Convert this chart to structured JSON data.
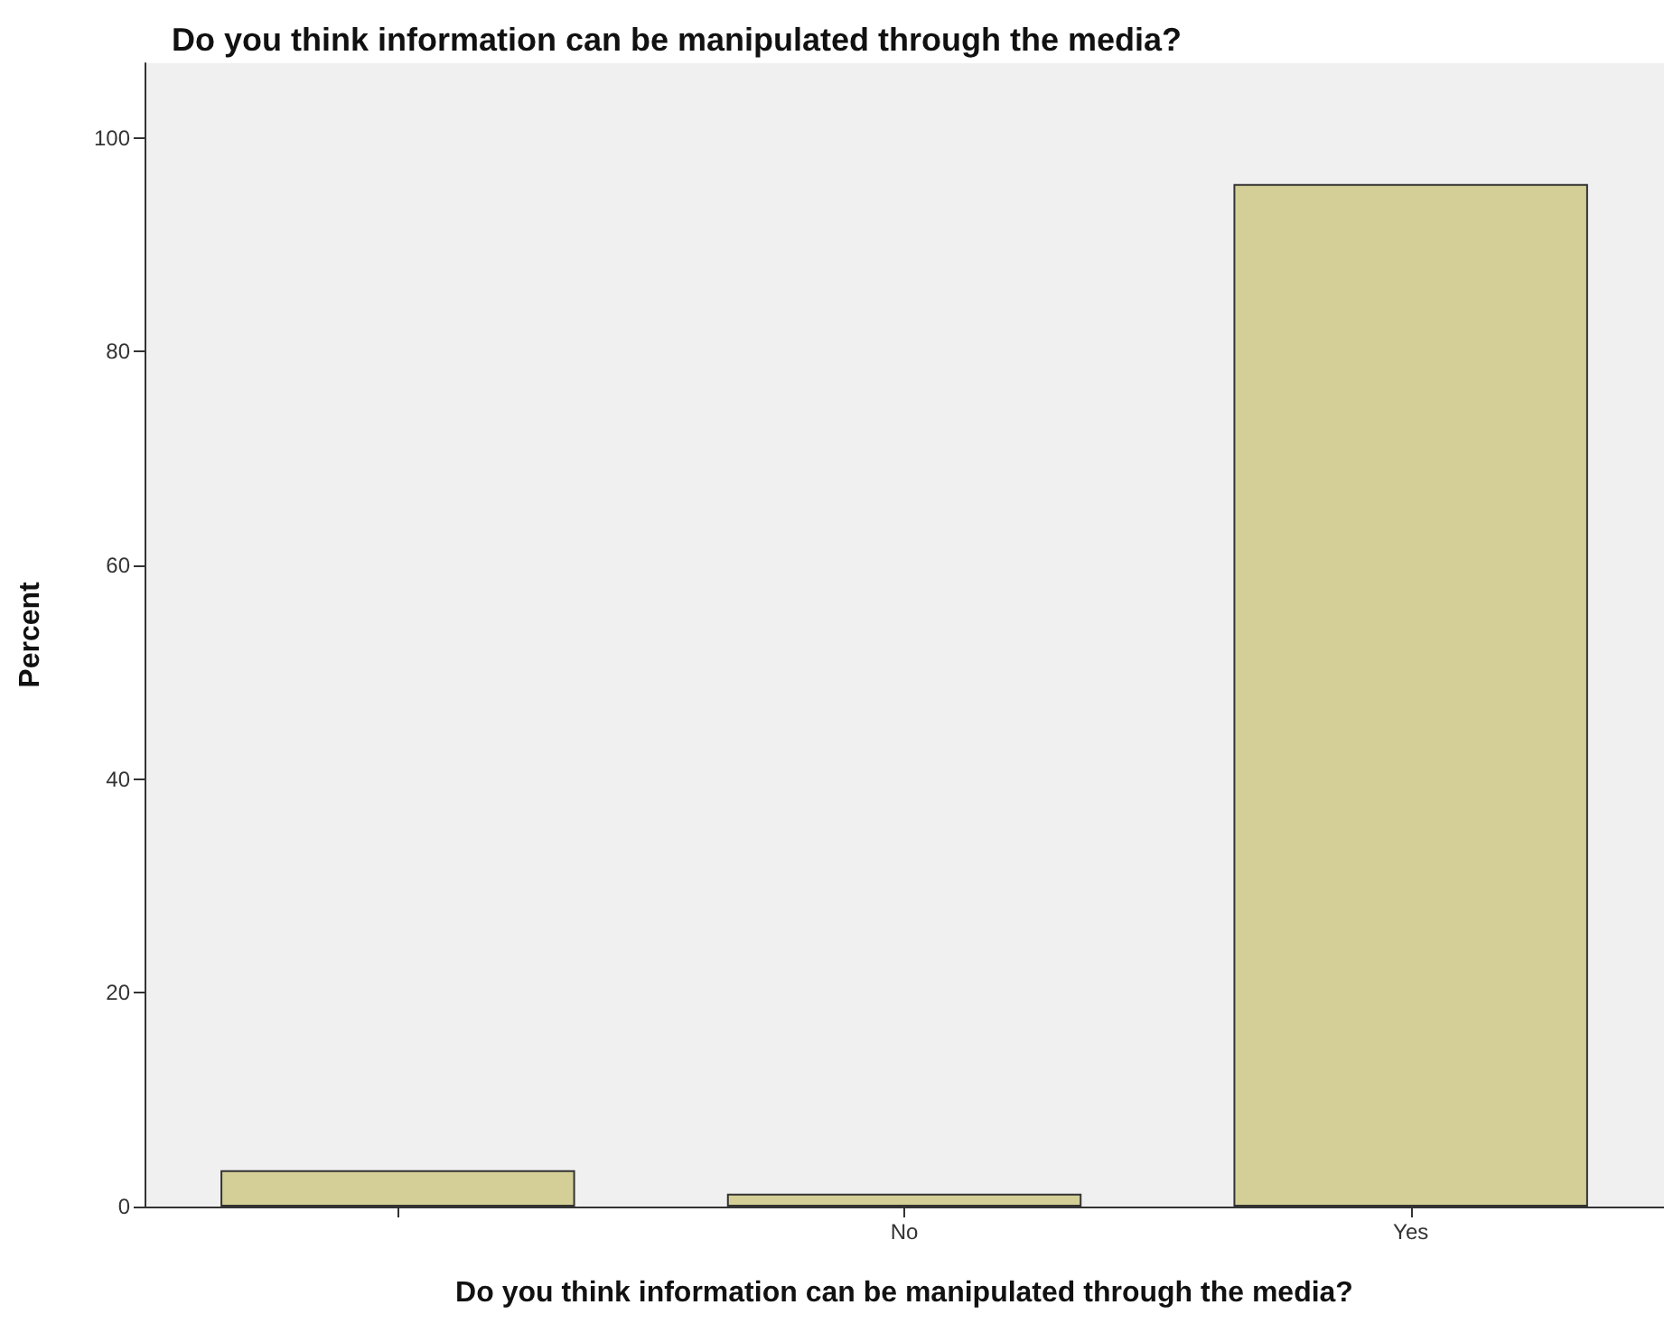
{
  "chart_data": {
    "type": "bar",
    "title": "Do you think information can be manipulated through the media?",
    "xlabel": "Do you think information can be manipulated through the media?",
    "ylabel": "Percent",
    "categories": [
      null,
      "No",
      "Yes"
    ],
    "values": [
      3.4,
      1.2,
      95.7
    ],
    "color": "#d4cf96",
    "ylim": [
      0,
      107
    ],
    "yticks": [
      0,
      20,
      40,
      60,
      80,
      100
    ],
    "grid": false
  }
}
